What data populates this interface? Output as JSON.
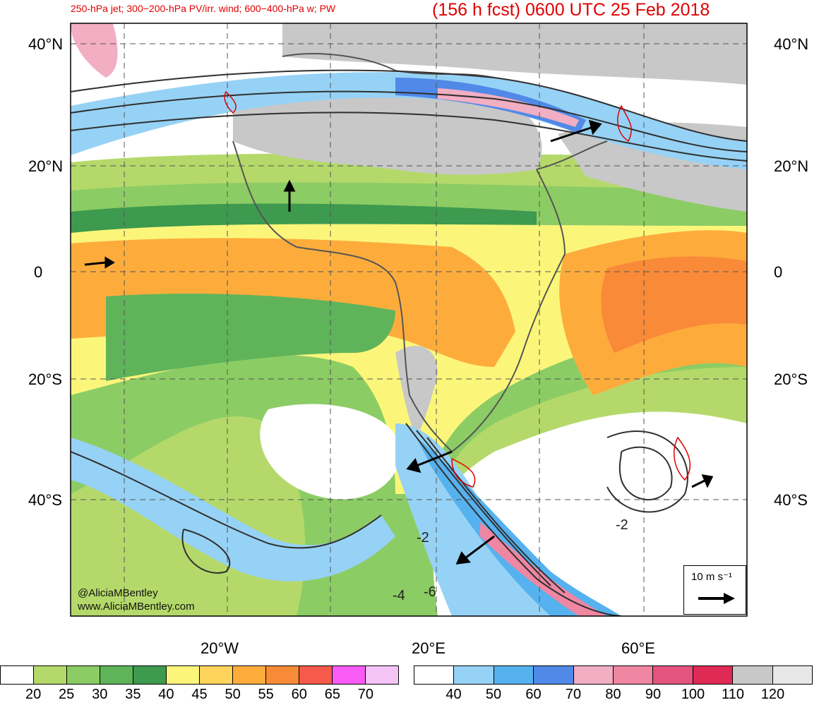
{
  "header": {
    "fields": "250-hPa jet; 300−200-hPa PV/irr. wind; 600−400-hPa w; PW",
    "forecast": "(156 h fcst) 0600 UTC 25 Feb 2018"
  },
  "latitude_labels": [
    "40°N",
    "20°N",
    "0",
    "20°S",
    "40°S"
  ],
  "longitude_labels": [
    "20°W",
    "20°E",
    "60°E"
  ],
  "contour_labels": [
    "-2",
    "-4",
    "-6",
    "-2"
  ],
  "credit": {
    "handle": "@AliciaMBentley",
    "site": "www.AliciaMBentley.com"
  },
  "wind_legend": {
    "label": "10 m s⁻¹"
  },
  "pw_colorbar": {
    "colors": [
      "#ffffff",
      "#b4d96a",
      "#8ccc64",
      "#5fb45a",
      "#3d9a4e",
      "#fbf67a",
      "#fed45a",
      "#fdac3c",
      "#f98a38",
      "#f55a4a",
      "#fa5cf5",
      "#f5c4f7"
    ],
    "labels": [
      "20",
      "25",
      "30",
      "35",
      "40",
      "45",
      "50",
      "55",
      "60",
      "65",
      "70"
    ]
  },
  "jet_colorbar": {
    "colors": [
      "#ffffff",
      "#96d2f5",
      "#56b2ee",
      "#5089e8",
      "#f2aec3",
      "#ef86a2",
      "#e4547e",
      "#df2a55",
      "#c8c8c8",
      "#e8e8e8"
    ],
    "labels": [
      "40",
      "50",
      "60",
      "70",
      "80",
      "90",
      "100",
      "110",
      "120"
    ]
  },
  "colors": {
    "title": "#e00000",
    "land_mask": "#c8c8c8",
    "contour": "#303030"
  }
}
